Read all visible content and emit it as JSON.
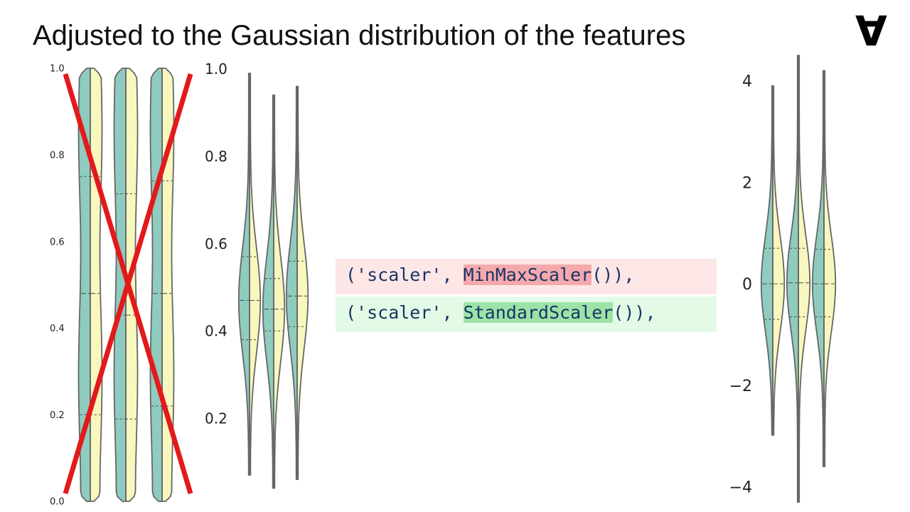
{
  "slide": {
    "title": "Adjusted to the Gaussian distribution of the features",
    "logo_glyph": "∀"
  },
  "code": {
    "line1": {
      "prefix": "('scaler', ",
      "highlight": "MinMaxScaler",
      "suffix": "()),",
      "bg": "#fde6e6",
      "hl": "#f4a9ad"
    },
    "line2": {
      "prefix": "('scaler', ",
      "highlight": "StandardScaler",
      "suffix": "()),",
      "bg": "#e3fae6",
      "hl": "#9be3a7"
    }
  },
  "chart_data": [
    {
      "type": "violin",
      "ylim": [
        0,
        1
      ],
      "yticks": [
        "0.0",
        "0.2",
        "0.4",
        "0.6",
        "0.8",
        "1.0"
      ],
      "crossed_out": true,
      "cross_color": "#e3191c",
      "violins": [
        {
          "min": 0.0,
          "max": 1.0,
          "q1": 0.2,
          "median": 0.48,
          "q3": 0.75
        },
        {
          "min": 0.0,
          "max": 1.0,
          "q1": 0.19,
          "median": 0.43,
          "q3": 0.71
        },
        {
          "min": 0.0,
          "max": 1.0,
          "q1": 0.22,
          "median": 0.48,
          "q3": 0.74
        }
      ],
      "colors": {
        "left_half": "#8fcbbe",
        "right_half": "#f8f7be"
      }
    },
    {
      "type": "violin",
      "ylim": [
        0.07,
        1.0
      ],
      "yticks": [
        "0.2",
        "0.4",
        "0.6",
        "0.8",
        "1.0"
      ],
      "violins": [
        {
          "min": 0.07,
          "max": 0.99,
          "q1": 0.38,
          "median": 0.47,
          "q3": 0.57
        },
        {
          "min": 0.04,
          "max": 0.94,
          "q1": 0.4,
          "median": 0.45,
          "q3": 0.52
        },
        {
          "min": 0.06,
          "max": 0.96,
          "q1": 0.41,
          "median": 0.48,
          "q3": 0.56
        }
      ],
      "colors": {
        "left_half": "#8fcbbe",
        "right_half": "#f8f7be"
      }
    },
    {
      "type": "violin",
      "ylim": [
        -4.3,
        4.5
      ],
      "yticks": [
        "4",
        "2",
        "0",
        "−2",
        "−4"
      ],
      "violins": [
        {
          "min": -2.98,
          "max": 3.9,
          "q1": -0.7,
          "median": 0.0,
          "q3": 0.7
        },
        {
          "min": -4.3,
          "max": 4.5,
          "q1": -0.65,
          "median": 0.02,
          "q3": 0.7
        },
        {
          "min": -3.6,
          "max": 4.2,
          "q1": -0.65,
          "median": 0.0,
          "q3": 0.68
        }
      ],
      "colors": {
        "left_half": "#8fcbbe",
        "right_half": "#f8f7be"
      }
    }
  ]
}
